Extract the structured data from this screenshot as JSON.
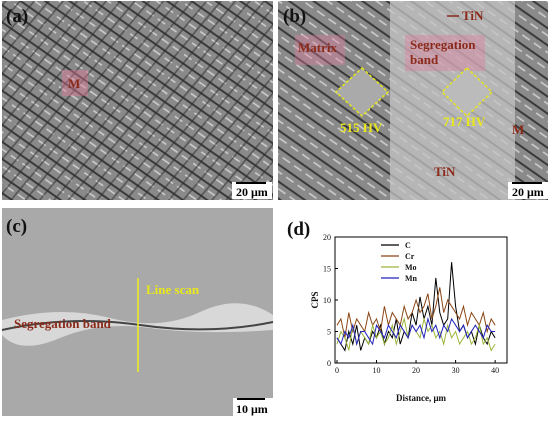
{
  "panels": [
    {
      "label": "(a)",
      "annotations": [
        "M"
      ],
      "scale_bar": "20 μm"
    },
    {
      "label": "(b)",
      "annotations": [
        "TiN",
        "Matrix",
        "Segregation",
        "band",
        "515 HV",
        "717 HV",
        "M",
        "TiN"
      ],
      "scale_bar": "20 μm"
    },
    {
      "label": "(c)",
      "annotations": [
        "Line scan",
        "Segregation band"
      ],
      "scale_bar": "10 μm"
    },
    {
      "label": "(d)"
    }
  ],
  "chart_data": {
    "type": "line",
    "x_label": "Distance, μm",
    "y_label": "CPS",
    "x": [
      0,
      1,
      2,
      3,
      4,
      5,
      6,
      7,
      8,
      9,
      10,
      11,
      12,
      13,
      14,
      15,
      16,
      17,
      18,
      19,
      20,
      21,
      22,
      23,
      24,
      25,
      26,
      27,
      28,
      29,
      30,
      31,
      32,
      33,
      34,
      35,
      36,
      37,
      38,
      39,
      40
    ],
    "series": [
      {
        "name": "C",
        "color": "#000000",
        "values": [
          4,
          3,
          2,
          5,
          3,
          6,
          2,
          4,
          3,
          5,
          4,
          6,
          3,
          5,
          4,
          7,
          3,
          5,
          4,
          8,
          6,
          10.5,
          7,
          9,
          6,
          13.5,
          8,
          6,
          7,
          16,
          9,
          5,
          6,
          4,
          5,
          3,
          6,
          4,
          3,
          5,
          4
        ]
      },
      {
        "name": "Cr",
        "color": "#8b4513",
        "values": [
          6,
          7,
          4,
          8,
          5,
          7,
          6,
          5,
          8,
          6,
          7,
          5,
          9,
          6,
          8,
          7,
          6,
          9,
          7,
          8,
          10,
          8,
          9,
          11,
          7,
          9,
          12,
          8,
          10,
          9,
          8,
          7,
          9,
          6,
          8,
          7,
          6,
          8,
          5,
          7,
          6
        ]
      },
      {
        "name": "Mo",
        "color": "#9ab53a",
        "values": [
          3,
          5,
          4,
          2,
          6,
          3,
          5,
          4,
          3,
          6,
          4,
          5,
          3,
          4,
          6,
          3,
          5,
          7,
          4,
          6,
          5,
          4,
          7,
          5,
          6,
          4,
          5,
          3,
          6,
          4,
          5,
          3,
          4,
          5,
          3,
          4,
          6,
          3,
          4,
          2,
          3
        ]
      },
      {
        "name": "Mn",
        "color": "#2222c0",
        "values": [
          4,
          3,
          5,
          4,
          6,
          3,
          5,
          5,
          4,
          3,
          6,
          5,
          4,
          6,
          5,
          4,
          6,
          5,
          4,
          6,
          5,
          6,
          4,
          7,
          5,
          6,
          4,
          6,
          5,
          7,
          6,
          5,
          6,
          4,
          5,
          6,
          5,
          4,
          6,
          5,
          5
        ]
      }
    ],
    "xlim": [
      -0.5,
      43
    ],
    "ylim": [
      0,
      20
    ],
    "xticks": [
      0,
      10,
      20,
      30,
      40
    ],
    "yticks": [
      0,
      5,
      10,
      15,
      20
    ],
    "legend": "upper center"
  }
}
